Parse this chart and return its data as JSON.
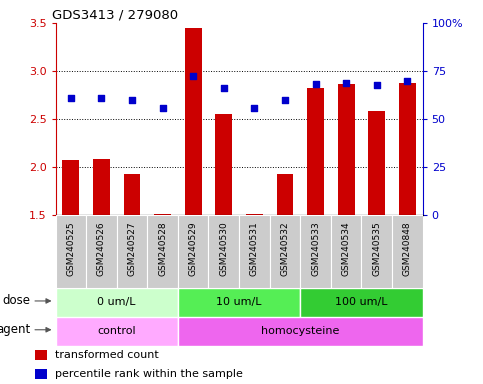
{
  "title": "GDS3413 / 279080",
  "samples": [
    "GSM240525",
    "GSM240526",
    "GSM240527",
    "GSM240528",
    "GSM240529",
    "GSM240530",
    "GSM240531",
    "GSM240532",
    "GSM240533",
    "GSM240534",
    "GSM240535",
    "GSM240848"
  ],
  "transformed_count": [
    2.07,
    2.08,
    1.93,
    1.51,
    3.45,
    2.55,
    1.51,
    1.93,
    2.82,
    2.87,
    2.58,
    2.88
  ],
  "percentile_rank": [
    2.72,
    2.72,
    2.7,
    2.62,
    2.95,
    2.82,
    2.62,
    2.7,
    2.86,
    2.88,
    2.85,
    2.9
  ],
  "ylim_left": [
    1.5,
    3.5
  ],
  "ylim_right": [
    0,
    100
  ],
  "yticks_left": [
    1.5,
    2.0,
    2.5,
    3.0,
    3.5
  ],
  "yticks_right": [
    0,
    25,
    50,
    75,
    100
  ],
  "bar_color": "#cc0000",
  "dot_color": "#0000cc",
  "bar_bottom": 1.5,
  "dose_groups": [
    {
      "label": "0 um/L",
      "start": 0,
      "end": 4,
      "color": "#ccffcc"
    },
    {
      "label": "10 um/L",
      "start": 4,
      "end": 8,
      "color": "#55ee55"
    },
    {
      "label": "100 um/L",
      "start": 8,
      "end": 12,
      "color": "#33cc33"
    }
  ],
  "agent_groups": [
    {
      "label": "control",
      "start": 0,
      "end": 4,
      "color": "#ffaaff"
    },
    {
      "label": "homocysteine",
      "start": 4,
      "end": 12,
      "color": "#ee66ee"
    }
  ],
  "dose_label": "dose",
  "agent_label": "agent",
  "legend_bar": "transformed count",
  "legend_dot": "percentile rank within the sample",
  "background_color": "#ffffff",
  "tick_label_bg": "#cccccc",
  "grid_dotted_vals": [
    2.0,
    2.5,
    3.0
  ],
  "xlim": [
    -0.5,
    11.5
  ]
}
